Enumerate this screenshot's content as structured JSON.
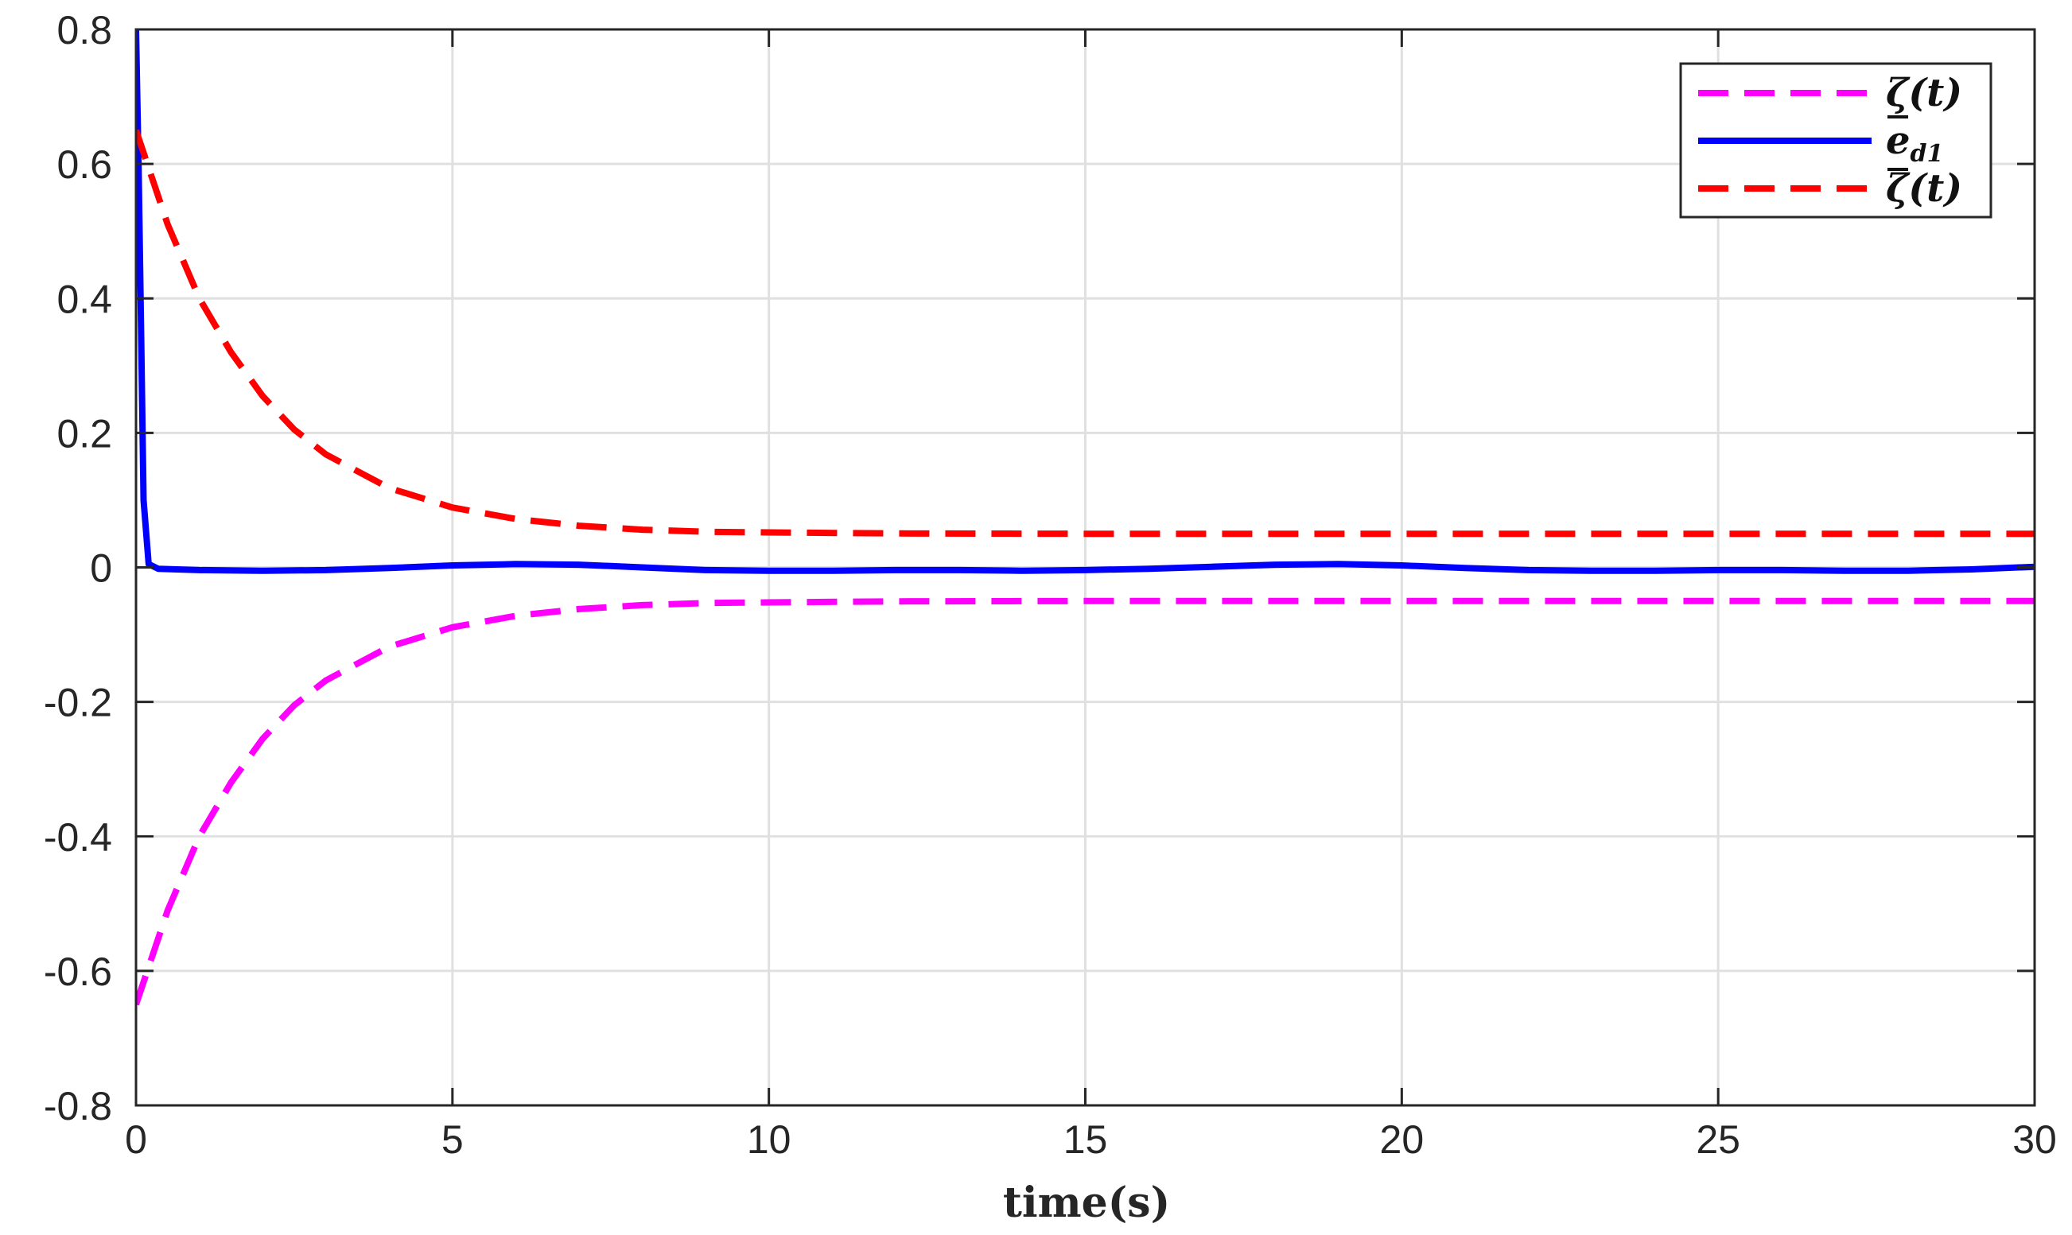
{
  "chart_data": {
    "type": "line",
    "title": "",
    "xlabel": "time(s)",
    "ylabel": "",
    "xlim": [
      0,
      30
    ],
    "ylim": [
      -0.8,
      0.8
    ],
    "xticks": [
      0,
      5,
      10,
      15,
      20,
      25,
      30
    ],
    "xtick_labels": [
      "0",
      "5",
      "10",
      "15",
      "20",
      "25",
      "30"
    ],
    "yticks": [
      -0.8,
      -0.6,
      -0.4,
      -0.2,
      0,
      0.2,
      0.4,
      0.6,
      0.8
    ],
    "ytick_labels": [
      "-0.8",
      "-0.6",
      "-0.4",
      "-0.2",
      "0",
      "0.2",
      "0.4",
      "0.6",
      "0.8"
    ],
    "grid": true,
    "legend_position": "top-right",
    "series": [
      {
        "name": "ζ(t) (lower)",
        "legend_label": "ζ(t)",
        "legend_decoration": "underline",
        "color": "#ff00ff",
        "style": "dashed",
        "x": [
          0,
          0.25,
          0.5,
          1,
          1.5,
          2,
          2.5,
          3,
          4,
          5,
          6,
          7,
          8,
          9,
          10,
          12,
          15,
          20,
          25,
          30
        ],
        "y": [
          -0.65,
          -0.58,
          -0.51,
          -0.4,
          -0.32,
          -0.255,
          -0.205,
          -0.168,
          -0.118,
          -0.089,
          -0.072,
          -0.062,
          -0.056,
          -0.053,
          -0.052,
          -0.0505,
          -0.05,
          -0.05,
          -0.05,
          -0.05
        ]
      },
      {
        "name": "e_d1",
        "legend_label": "e",
        "legend_subscript": "d1",
        "color": "#0000ff",
        "style": "solid",
        "x": [
          0,
          0.04,
          0.08,
          0.12,
          0.2,
          0.35,
          1,
          2,
          3,
          4,
          5,
          6,
          7,
          8,
          9,
          10,
          11,
          12,
          13,
          14,
          15,
          16,
          17,
          18,
          19,
          20,
          21,
          22,
          23,
          24,
          25,
          26,
          27,
          28,
          29,
          30
        ],
        "y": [
          0.8,
          0.6,
          0.35,
          0.1,
          0.005,
          -0.002,
          -0.004,
          -0.005,
          -0.004,
          -0.001,
          0.003,
          0.005,
          0.004,
          0.0,
          -0.004,
          -0.005,
          -0.005,
          -0.004,
          -0.004,
          -0.005,
          -0.004,
          -0.002,
          0.001,
          0.004,
          0.005,
          0.003,
          -0.001,
          -0.004,
          -0.005,
          -0.005,
          -0.004,
          -0.004,
          -0.005,
          -0.005,
          -0.003,
          0.001
        ]
      },
      {
        "name": "ζ(t) (upper)",
        "legend_label": "ζ(t)",
        "legend_decoration": "overline",
        "color": "#ff0000",
        "style": "dashed",
        "x": [
          0,
          0.25,
          0.5,
          1,
          1.5,
          2,
          2.5,
          3,
          4,
          5,
          6,
          7,
          8,
          9,
          10,
          12,
          15,
          20,
          25,
          30
        ],
        "y": [
          0.65,
          0.58,
          0.51,
          0.4,
          0.32,
          0.255,
          0.205,
          0.168,
          0.118,
          0.089,
          0.072,
          0.062,
          0.056,
          0.053,
          0.052,
          0.0505,
          0.05,
          0.05,
          0.05,
          0.05
        ]
      }
    ]
  },
  "colors": {
    "axis": "#262626",
    "grid": "#e0e0e0",
    "background": "#ffffff"
  }
}
